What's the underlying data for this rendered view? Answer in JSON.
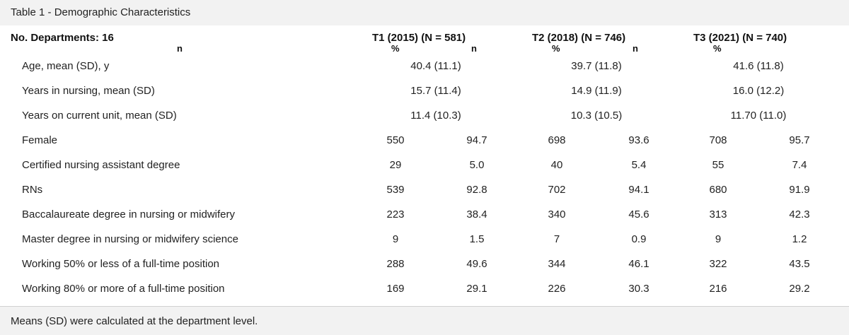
{
  "caption": "Table 1 - Demographic Characteristics",
  "header": {
    "departments": "No. Departments: 16",
    "n_label": "n",
    "t1": "T1 (2015) (N = 581)",
    "t2": "T2 (2018) (N = 746)",
    "t3": "T3 (2021) (N = 740)",
    "pct_label": "%"
  },
  "rows": [
    {
      "label": "Age, mean (SD), y",
      "t1": "40.4 (11.1)",
      "t2": "39.7 (11.8)",
      "t3": "41.6 (11.8)"
    },
    {
      "label": "Years in nursing, mean (SD)",
      "t1": "15.7 (11.4)",
      "t2": "14.9 (11.9)",
      "t3": "16.0 (12.2)"
    },
    {
      "label": "Years on current unit, mean (SD)",
      "t1": "11.4 (10.3)",
      "t2": "10.3 (10.5)",
      "t3": "11.70 (11.0)"
    },
    {
      "label": "Female",
      "t1n": "550",
      "t1p": "94.7",
      "t2n": "698",
      "t2p": "93.6",
      "t3n": "708",
      "t3p": "95.7"
    },
    {
      "label": "Certified nursing assistant degree",
      "t1n": "29",
      "t1p": "5.0",
      "t2n": "40",
      "t2p": "5.4",
      "t3n": "55",
      "t3p": "7.4"
    },
    {
      "label": "RNs",
      "t1n": "539",
      "t1p": "92.8",
      "t2n": "702",
      "t2p": "94.1",
      "t3n": "680",
      "t3p": "91.9"
    },
    {
      "label": "Baccalaureate degree in nursing or midwifery",
      "t1n": "223",
      "t1p": "38.4",
      "t2n": "340",
      "t2p": "45.6",
      "t3n": "313",
      "t3p": "42.3"
    },
    {
      "label": "Master degree in nursing or midwifery science",
      "t1n": "9",
      "t1p": "1.5",
      "t2n": "7",
      "t2p": "0.9",
      "t3n": "9",
      "t3p": "1.2"
    },
    {
      "label": "Working 50% or less of a full-time position",
      "t1n": "288",
      "t1p": "49.6",
      "t2n": "344",
      "t2p": "46.1",
      "t3n": "322",
      "t3p": "43.5"
    },
    {
      "label": "Working 80% or more of a full-time position",
      "t1n": "169",
      "t1p": "29.1",
      "t2n": "226",
      "t2p": "30.3",
      "t3n": "216",
      "t3p": "29.2"
    }
  ],
  "footer": "Means (SD) were calculated at the department level."
}
